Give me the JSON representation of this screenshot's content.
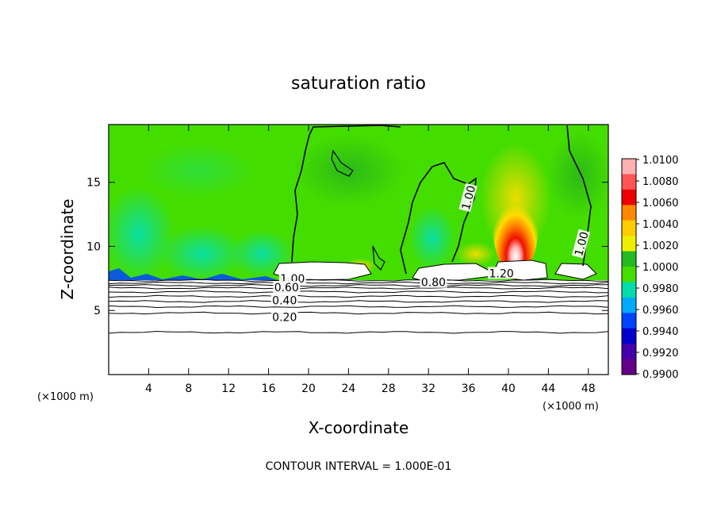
{
  "chart_data": {
    "type": "heatmap",
    "title": "saturation ratio",
    "xlabel": "X-coordinate",
    "ylabel": "Z-coordinate",
    "x_units": "(×1000 m)",
    "y_units": "(×1000 m)",
    "footer": "CONTOUR INTERVAL = 1.000E-01",
    "xlim": [
      0,
      50
    ],
    "ylim": [
      0,
      19.5
    ],
    "x_ticks": [
      4,
      8,
      12,
      16,
      20,
      24,
      28,
      32,
      36,
      40,
      44,
      48
    ],
    "y_ticks": [
      5,
      10,
      15
    ],
    "colorbar": {
      "values": [
        "1.0100",
        "1.0080",
        "1.0060",
        "1.0040",
        "1.0020",
        "1.0000",
        "0.9980",
        "0.9960",
        "0.9940",
        "0.9920",
        "0.9900"
      ],
      "colors": [
        "#ffb0b0",
        "#ff5555",
        "#ee0000",
        "#ff8800",
        "#ffcc00",
        "#eeee00",
        "#22bb22",
        "#44dd00",
        "#00ddaa",
        "#00aaff",
        "#0044ff",
        "#0000cc",
        "#4400aa",
        "#660088"
      ]
    },
    "contour_labels": [
      {
        "text": "1.00",
        "x": 18.4,
        "z": 7.5
      },
      {
        "text": "0.60",
        "x": 17.8,
        "z": 6.8
      },
      {
        "text": "0.40",
        "x": 17.6,
        "z": 5.8
      },
      {
        "text": "0.20",
        "x": 17.6,
        "z": 4.5
      },
      {
        "text": "0.80",
        "x": 32.5,
        "z": 7.2
      },
      {
        "text": "1.20",
        "x": 39.3,
        "z": 7.9
      },
      {
        "text": "1.00",
        "x": 36.0,
        "z": 13.8
      },
      {
        "text": "1.00",
        "x": 47.3,
        "z": 10.2
      }
    ],
    "lower_contour_levels_z": [
      7.35,
      7.15,
      6.95,
      6.75,
      6.45,
      6.1,
      5.7,
      5.3,
      4.8,
      3.3
    ]
  }
}
